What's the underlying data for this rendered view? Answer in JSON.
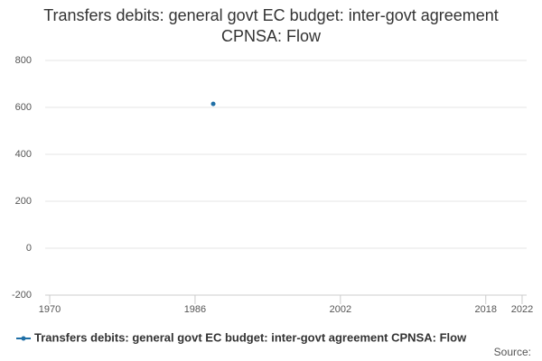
{
  "chart_data": {
    "type": "line",
    "title": "Transfers debits: general govt EC budget: inter-govt agreement CPNSA: Flow",
    "x": [
      1988
    ],
    "series": [
      {
        "name": "Transfers debits: general govt EC budget: inter-govt agreement CPNSA: Flow",
        "color": "#1f6fa6",
        "values": [
          615
        ]
      }
    ],
    "xlim": [
      1969.5,
      2022.5
    ],
    "xticks": [
      1970,
      1986,
      2002,
      2018,
      2022
    ],
    "ylim": [
      -200,
      800
    ],
    "yticks": [
      -200,
      0,
      200,
      400,
      600,
      800
    ],
    "grid": true,
    "legend": "bottom",
    "source": "Source:"
  }
}
